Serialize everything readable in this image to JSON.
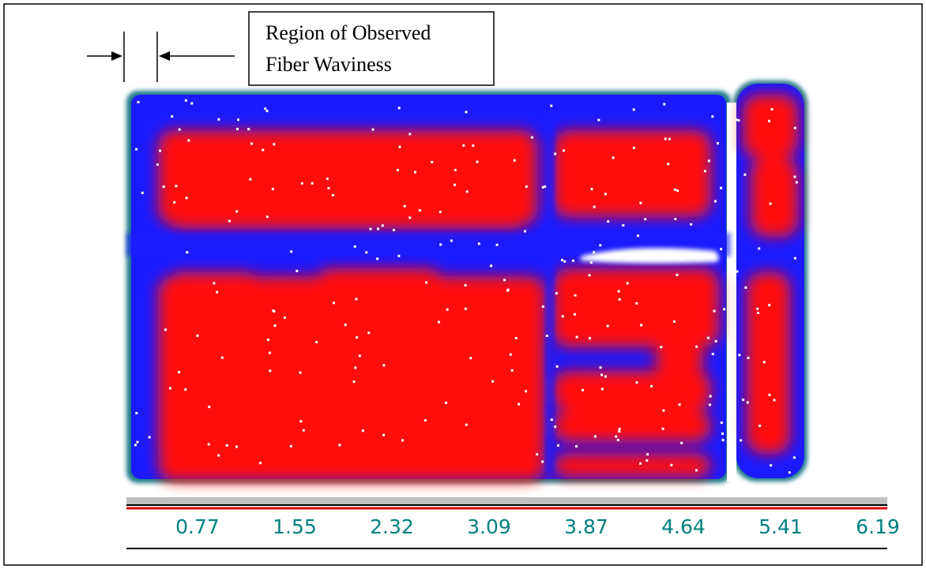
{
  "annotation": {
    "lines": [
      "Region of Observed",
      "Fiber Waviness"
    ]
  },
  "scale": {
    "ticks": [
      0.77,
      1.55,
      2.32,
      3.09,
      3.87,
      4.64,
      5.41,
      6.19
    ]
  }
}
